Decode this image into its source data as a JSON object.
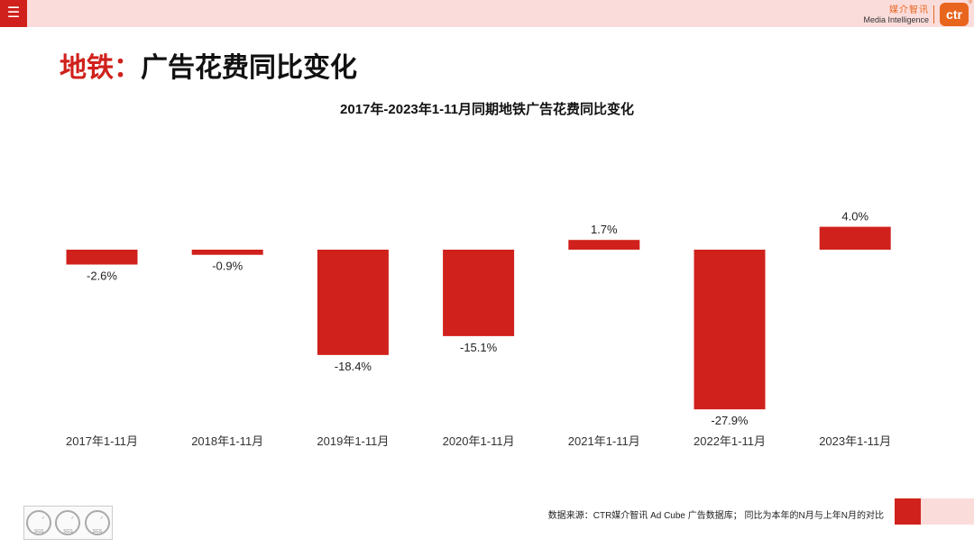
{
  "header": {
    "menu_icon": "hamburger-icon",
    "brand_cn": "媒介智讯",
    "brand_en": "Media Intelligence",
    "logo_text": "ctr",
    "logo_reg": "®"
  },
  "page_title": {
    "accent": "地铁：",
    "rest": "广告花费同比变化"
  },
  "chart_data": {
    "type": "bar",
    "title": "2017年-2023年1-11月同期地铁广告花费同比变化",
    "categories": [
      "2017年1-11月",
      "2018年1-11月",
      "2019年1-11月",
      "2020年1-11月",
      "2021年1-11月",
      "2022年1-11月",
      "2023年1-11月"
    ],
    "values": [
      -2.6,
      -0.9,
      -18.4,
      -15.1,
      1.7,
      -27.9,
      4.0
    ],
    "data_labels": [
      "-2.6%",
      "-0.9%",
      "-18.4%",
      "-15.1%",
      "1.7%",
      "-27.9%",
      "4.0%"
    ],
    "bar_color": "#d0211c",
    "grid": false,
    "legend": "none"
  },
  "footer": {
    "source": "数据来源：CTR媒介智讯 Ad Cube 广告数据库； 同比为本年的N月与上年N月的对比",
    "badge_label": "SGS"
  },
  "colors": {
    "accent": "#d0211c",
    "pink": "#fadcda",
    "brand_orange": "#e8651e"
  }
}
